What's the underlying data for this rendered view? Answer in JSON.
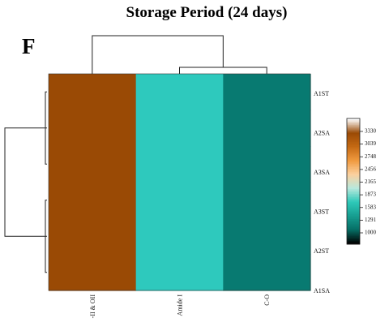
{
  "chart_data": {
    "type": "heatmap",
    "title": "Storage Period (24 days)",
    "panel_label": "F",
    "rows": [
      "A1ST",
      "A2SA",
      "A3SA",
      "A3ST",
      "A2ST",
      "A1SA"
    ],
    "columns": [
      "-II & OII",
      "Amide I",
      "C-O"
    ],
    "values": [
      [
        3040,
        1840,
        1290
      ],
      [
        3040,
        1840,
        1290
      ],
      [
        3040,
        1840,
        1290
      ],
      [
        3040,
        1840,
        1290
      ],
      [
        3040,
        1840,
        1290
      ],
      [
        3040,
        1840,
        1290
      ]
    ],
    "colorbar": {
      "ticks": [
        "3330",
        "3039",
        "2748",
        "2456",
        "2165",
        "1873",
        "1583",
        "1291",
        "1000"
      ],
      "colors": [
        "#ffffff",
        "#9a4a05",
        "#c56a14",
        "#f09a3f",
        "#fcd09e",
        "#b8e8dd",
        "#2ec9b9",
        "#179e91",
        "#066f66",
        "#000000"
      ]
    },
    "cell_colors": [
      "#9a4a05",
      "#2ec9bd",
      "#087a71"
    ],
    "dendrogram": {
      "rows": "left",
      "columns": "top"
    }
  }
}
